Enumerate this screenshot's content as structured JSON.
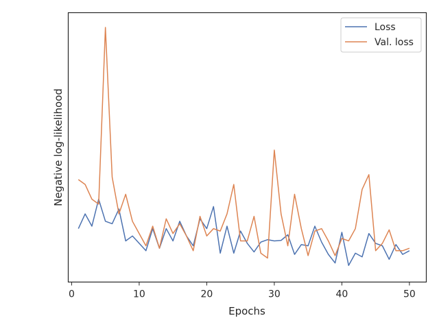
{
  "chart_data": {
    "type": "line",
    "xlabel": "Epochs",
    "ylabel": "Negative log-likelihood",
    "xlim": [
      -0.5,
      52.5
    ],
    "ylim": [
      0,
      1
    ],
    "x_ticks": [
      0,
      10,
      20,
      30,
      40,
      50
    ],
    "y_ticks_shown": false,
    "grid": false,
    "legend_position": "top-right",
    "x": [
      1,
      2,
      3,
      4,
      5,
      6,
      7,
      8,
      9,
      10,
      11,
      12,
      13,
      14,
      15,
      16,
      17,
      18,
      19,
      20,
      21,
      22,
      23,
      24,
      25,
      26,
      27,
      28,
      29,
      30,
      31,
      32,
      33,
      34,
      35,
      36,
      37,
      38,
      39,
      40,
      41,
      42,
      43,
      44,
      45,
      46,
      47,
      48,
      49,
      50
    ],
    "series": [
      {
        "name": "Loss",
        "color": "#4c72b0",
        "values": [
          0.18,
          0.24,
          0.19,
          0.3,
          0.21,
          0.2,
          0.26,
          0.13,
          0.15,
          0.12,
          0.09,
          0.18,
          0.1,
          0.18,
          0.13,
          0.21,
          0.15,
          0.11,
          0.22,
          0.18,
          0.27,
          0.08,
          0.19,
          0.08,
          0.17,
          0.12,
          0.085,
          0.125,
          0.135,
          0.13,
          0.132,
          0.155,
          0.075,
          0.115,
          0.11,
          0.19,
          0.125,
          0.075,
          0.04,
          0.165,
          0.03,
          0.08,
          0.065,
          0.16,
          0.12,
          0.11,
          0.055,
          0.115,
          0.075,
          0.09
        ]
      },
      {
        "name": "Val. loss",
        "color": "#dd8452",
        "values": [
          0.38,
          0.36,
          0.3,
          0.28,
          1.0,
          0.39,
          0.24,
          0.32,
          0.21,
          0.16,
          0.11,
          0.19,
          0.1,
          0.22,
          0.16,
          0.2,
          0.15,
          0.09,
          0.23,
          0.15,
          0.18,
          0.17,
          0.24,
          0.36,
          0.13,
          0.13,
          0.23,
          0.08,
          0.06,
          0.5,
          0.24,
          0.11,
          0.32,
          0.18,
          0.07,
          0.17,
          0.18,
          0.13,
          0.07,
          0.14,
          0.13,
          0.18,
          0.34,
          0.4,
          0.09,
          0.12,
          0.175,
          0.09,
          0.09,
          0.1
        ]
      }
    ]
  }
}
